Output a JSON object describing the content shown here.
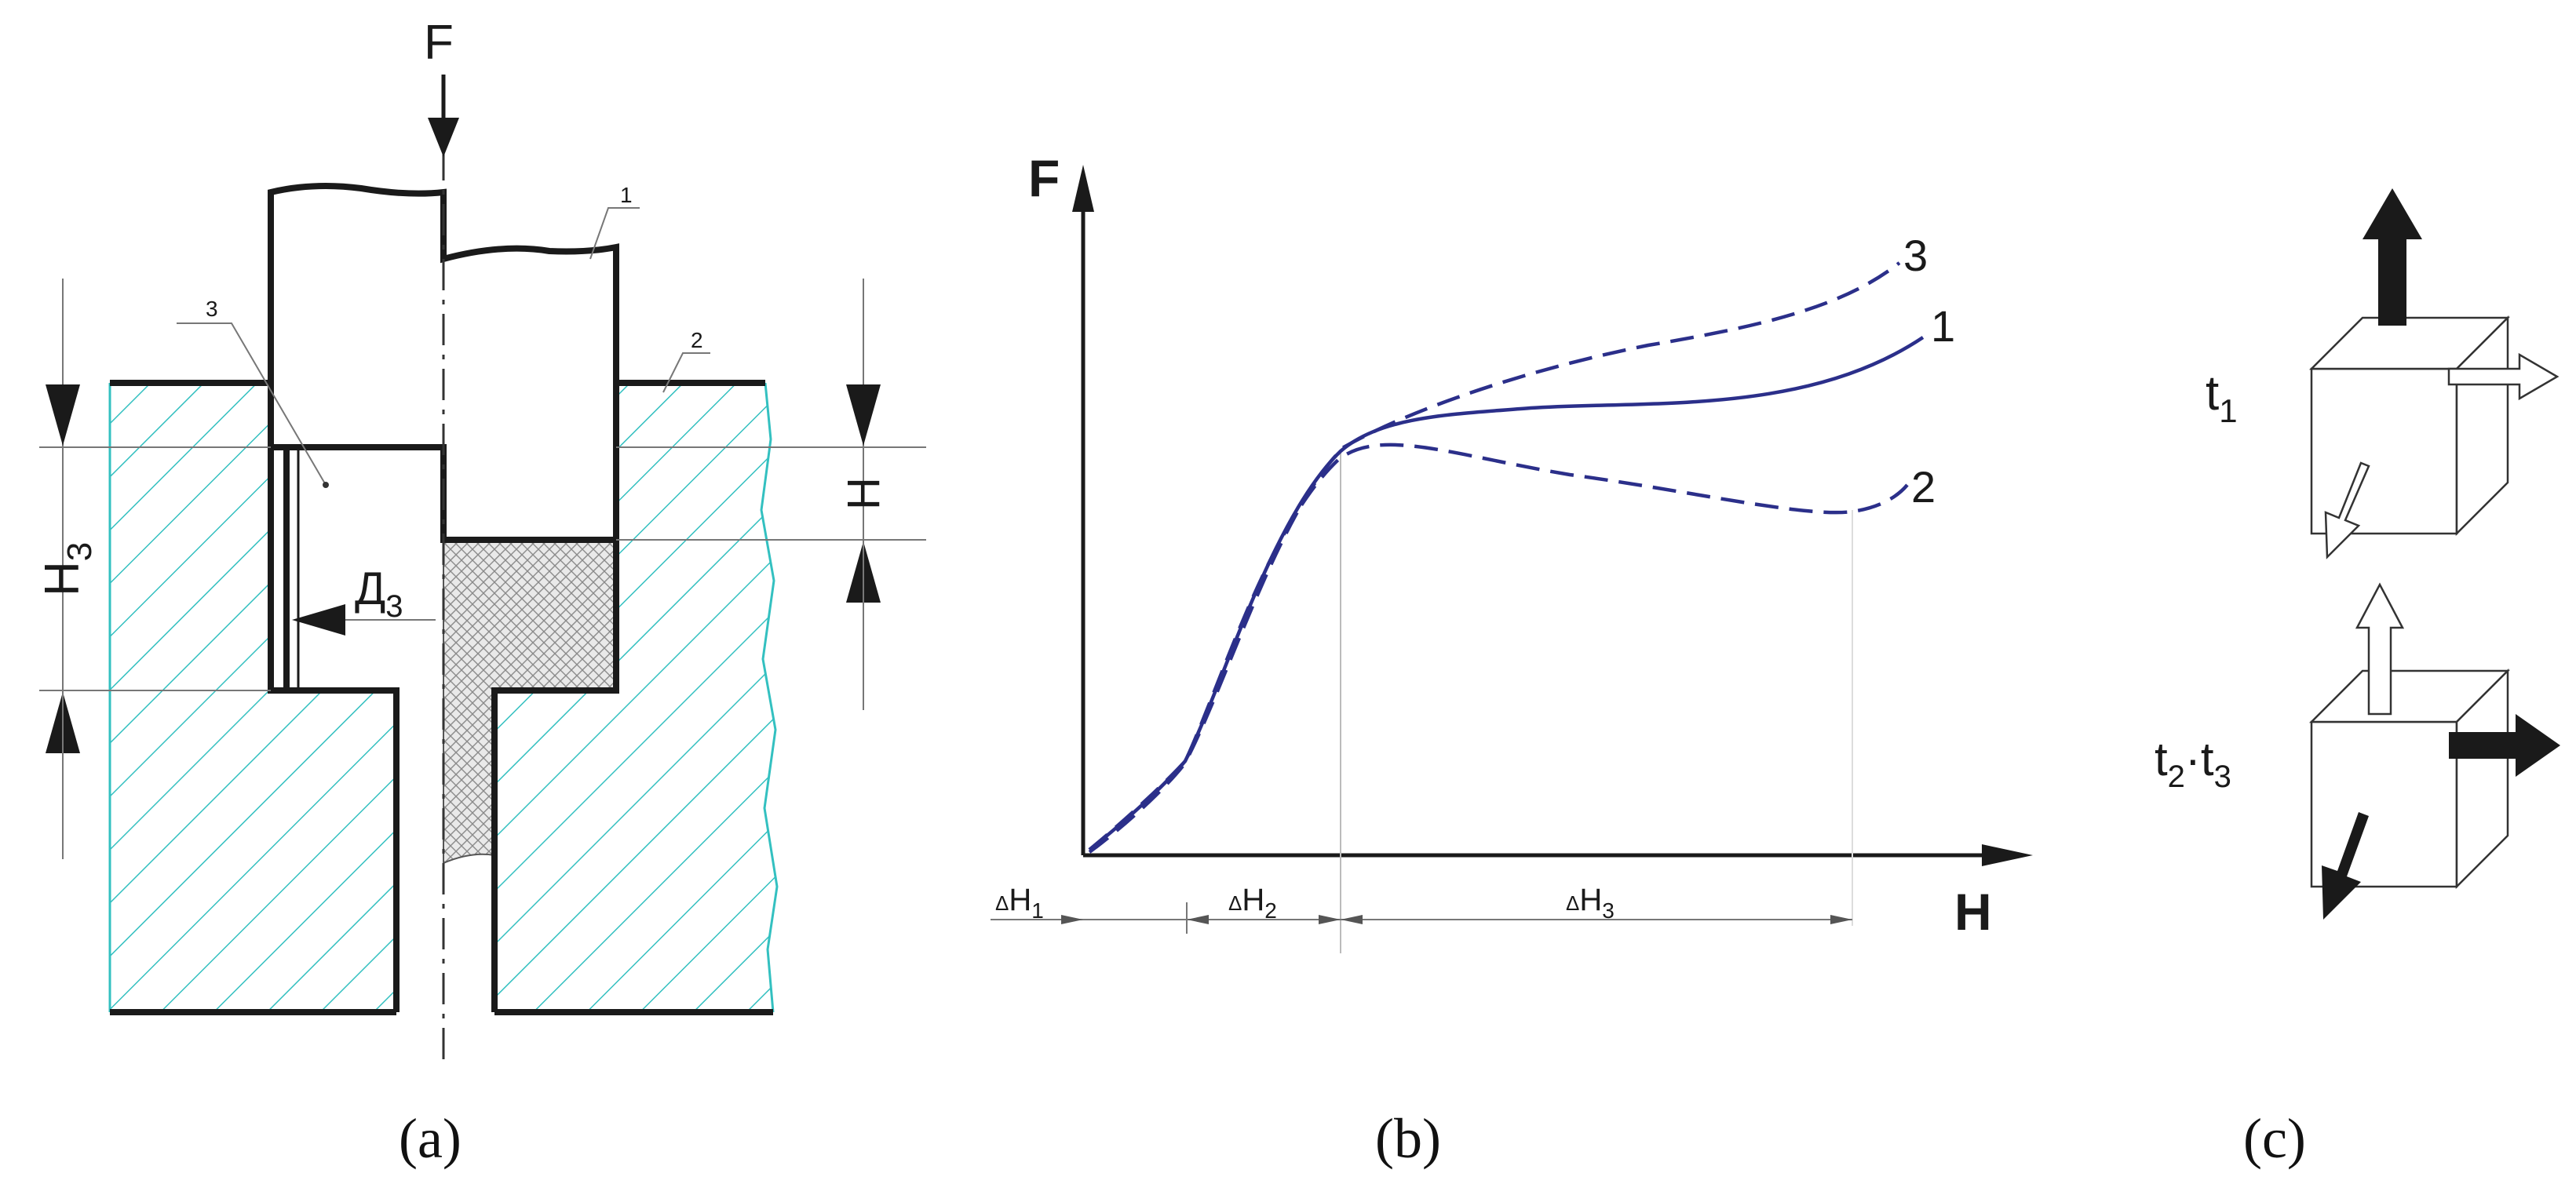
{
  "panel_a": {
    "force_label": "F",
    "part_numbers": [
      "1",
      "2",
      "3"
    ],
    "height_label_left": "H",
    "height_subscript_left": "3",
    "height_label_right": "H",
    "diameter_label": "Д",
    "diameter_subscript": "3",
    "caption": "(a)",
    "colors": {
      "hatch": "#33c0c0",
      "outline": "#1a1a1a",
      "mesh": "#8a8a8a"
    }
  },
  "panel_b": {
    "caption": "(b)",
    "y_axis_label": "F",
    "x_axis_label": "H",
    "intervals": [
      {
        "prefix": "Δ",
        "label": "H",
        "sub": "1"
      },
      {
        "prefix": "Δ",
        "label": "H",
        "sub": "2"
      },
      {
        "prefix": "Δ",
        "label": "H",
        "sub": "3"
      }
    ],
    "curve_labels": [
      "1",
      "2",
      "3"
    ],
    "curve_color": "#2b2f8a"
  },
  "panel_c": {
    "caption": "(c)",
    "label_top": {
      "t": "t",
      "sub": "1"
    },
    "label_bottom": {
      "t1": "t",
      "sub1": "2",
      "sep": "·",
      "t2": "t",
      "sub2": "3"
    },
    "icons": [
      "cube-icon",
      "arrow-icon"
    ]
  }
}
